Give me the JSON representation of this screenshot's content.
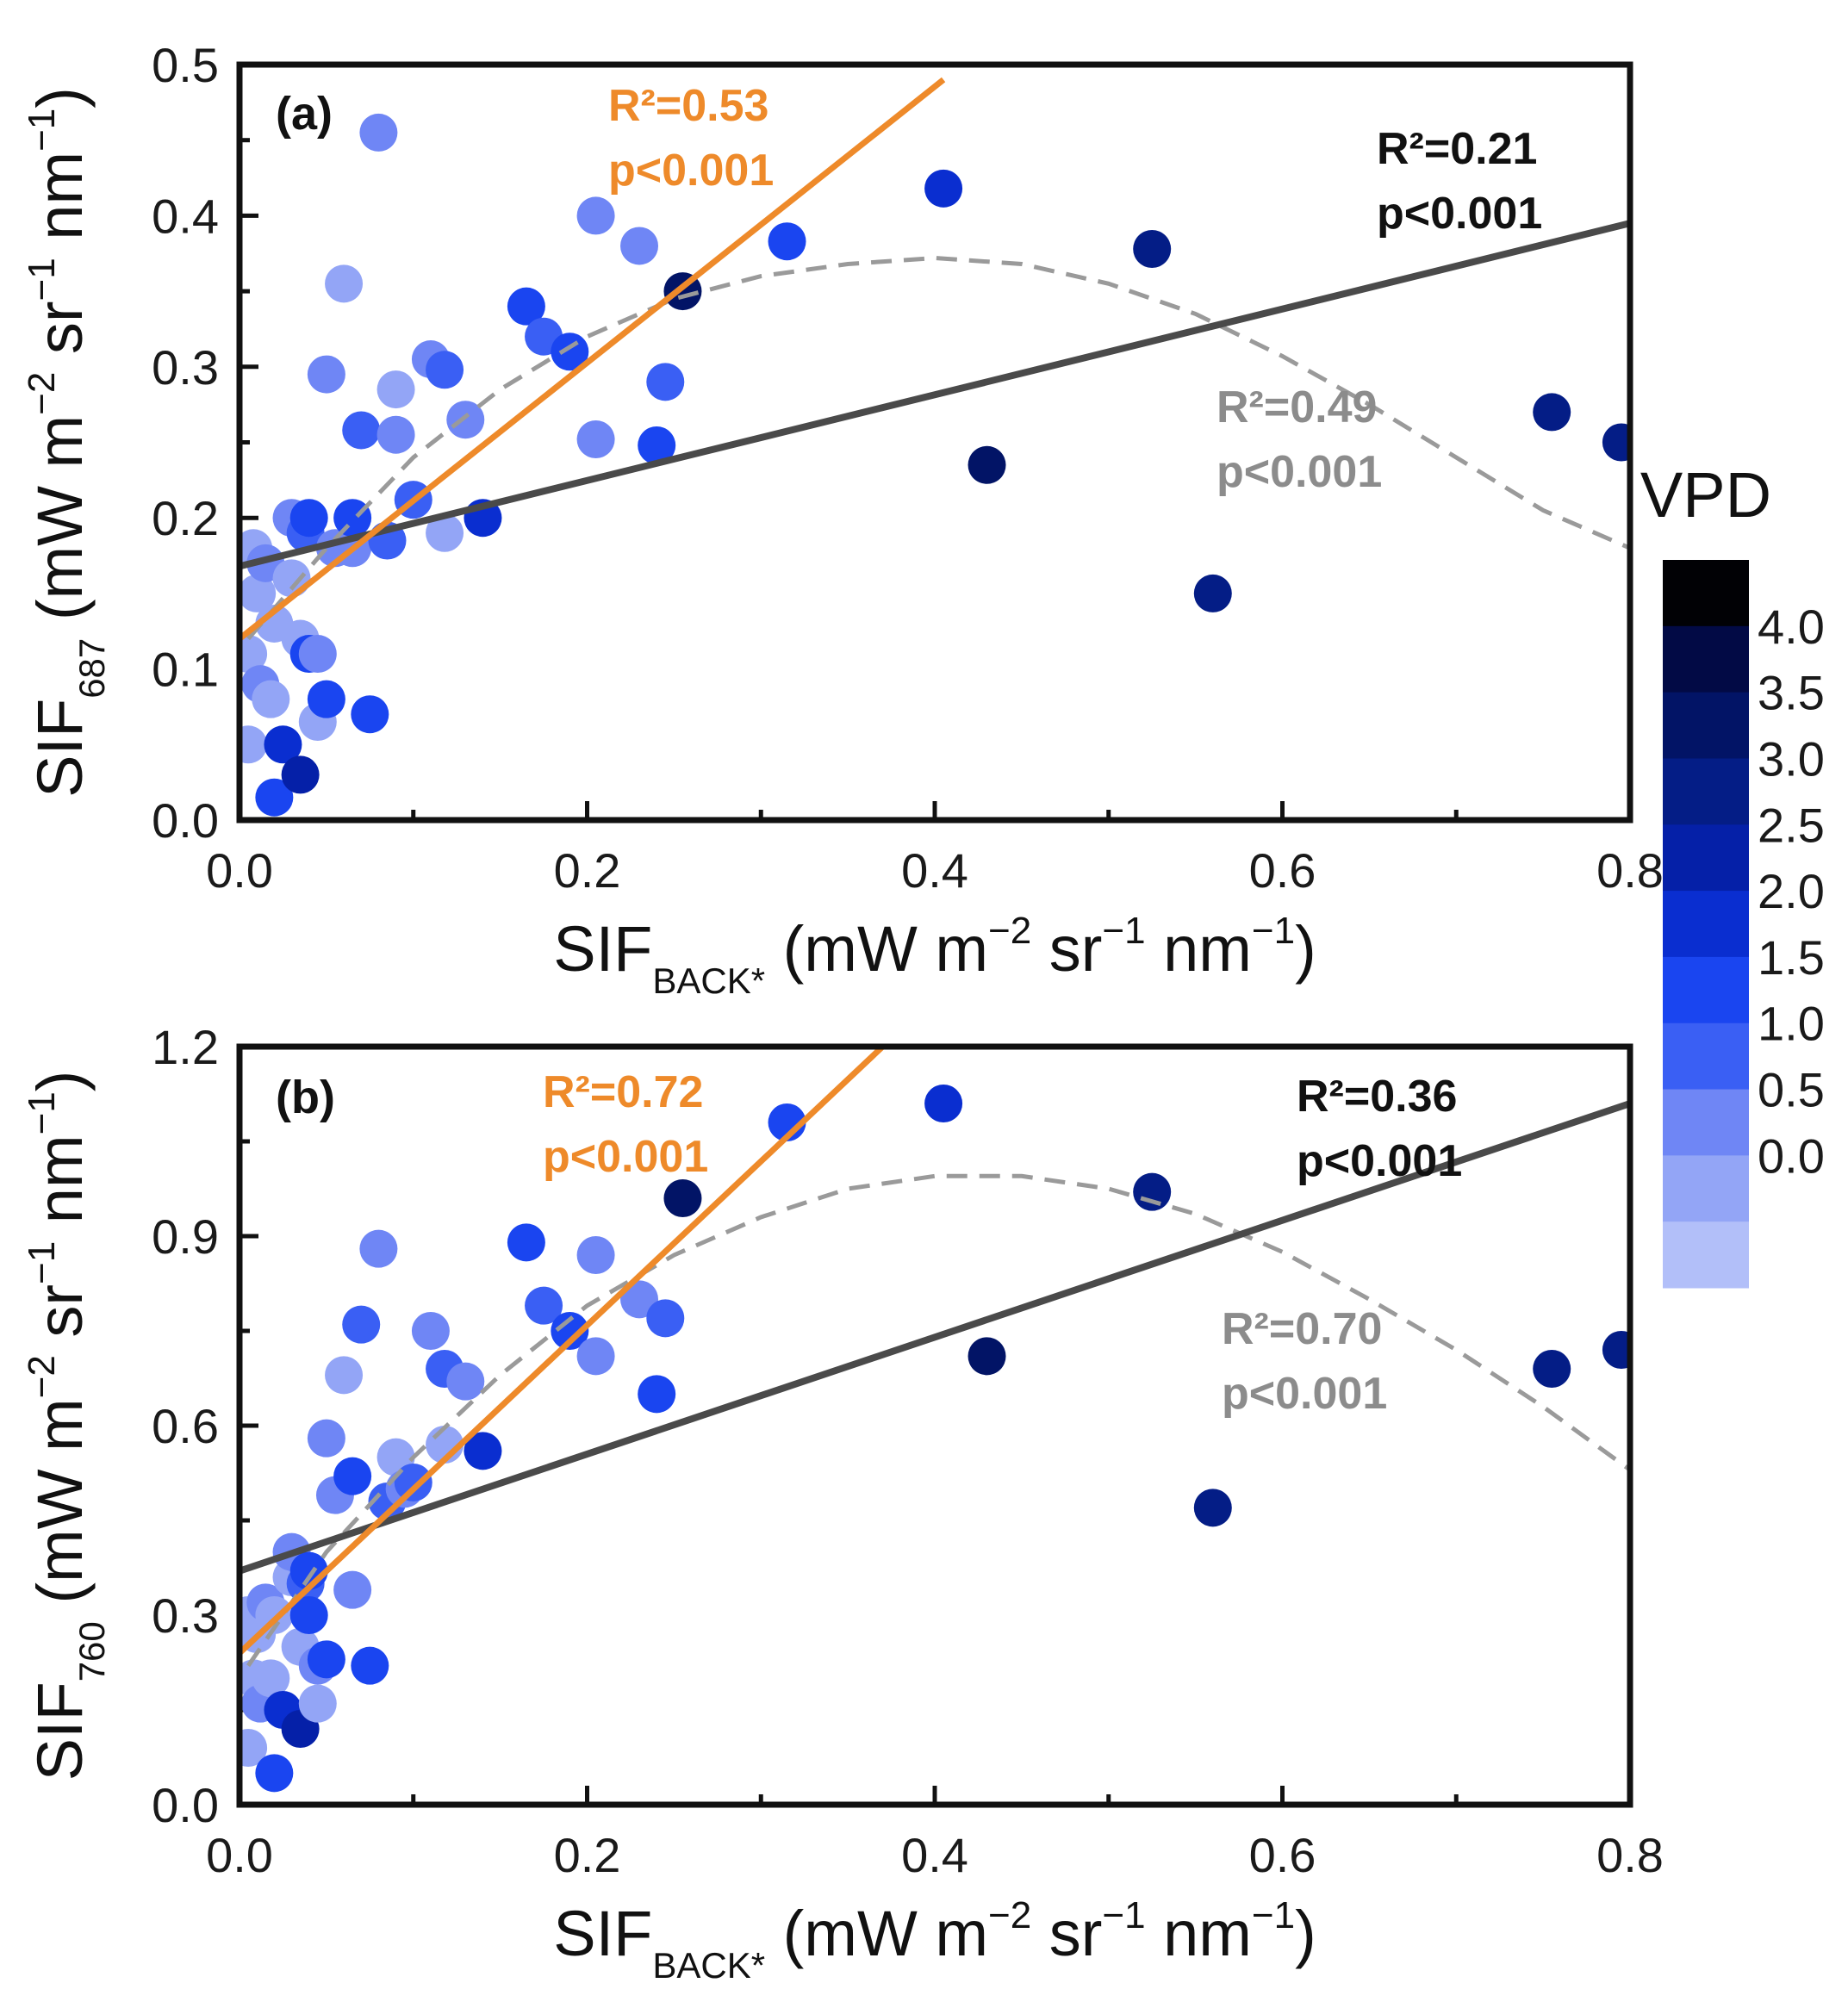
{
  "colors": {
    "orange": "#ee8a2a",
    "linear": "#4a4a4a",
    "quadratic": "#9a9a9a",
    "black": "#111111",
    "gray_text": "#8c8c8c"
  },
  "colorbar": {
    "title": "VPD",
    "ticks": [
      "4.0",
      "3.5",
      "3.0",
      "2.5",
      "2.0",
      "1.5",
      "1.0",
      "0.5",
      "0.0"
    ],
    "colors": [
      "#010105",
      "#020a45",
      "#021466",
      "#041d86",
      "#0520a8",
      "#0a2ed0",
      "#1a45f0",
      "#3a5ff4",
      "#6f86f5",
      "#93a5f6",
      "#b2bff9"
    ]
  },
  "chart_data": [
    {
      "id": "a",
      "type": "scatter",
      "panel_label": "(a)",
      "xlabel": {
        "main": "SIF",
        "sub": "BACK*",
        "units": " (mW m",
        "e1": "−2",
        "u2": " sr",
        "e2": "−1",
        "u3": " nm",
        "e3": "−1",
        "u4": ")"
      },
      "ylabel": {
        "main": "SIF",
        "sub": "687",
        "units": " (mW m",
        "e1": "−2",
        "u2": " sr",
        "e2": "−1",
        "u3": " nm",
        "e3": "−1",
        "u4": ")"
      },
      "xlim": [
        0,
        0.8
      ],
      "ylim": [
        0,
        0.5
      ],
      "xticks": [
        "0.0",
        "0.2",
        "0.4",
        "0.6",
        "0.8"
      ],
      "yticks": [
        "0.0",
        "0.1",
        "0.2",
        "0.3",
        "0.4",
        "0.5"
      ],
      "fits": {
        "orange": {
          "x": [
            0.0,
            0.405
          ],
          "y": [
            0.12,
            0.49
          ]
        },
        "linear": {
          "x": [
            0.0,
            0.8
          ],
          "y": [
            0.168,
            0.395
          ]
        },
        "quadratic_points": [
          [
            0.005,
            0.12
          ],
          [
            0.05,
            0.18
          ],
          [
            0.1,
            0.24
          ],
          [
            0.15,
            0.285
          ],
          [
            0.2,
            0.32
          ],
          [
            0.25,
            0.345
          ],
          [
            0.3,
            0.36
          ],
          [
            0.35,
            0.368
          ],
          [
            0.4,
            0.372
          ],
          [
            0.45,
            0.368
          ],
          [
            0.5,
            0.355
          ],
          [
            0.55,
            0.335
          ],
          [
            0.6,
            0.307
          ],
          [
            0.65,
            0.275
          ],
          [
            0.7,
            0.24
          ],
          [
            0.75,
            0.205
          ],
          [
            0.8,
            0.18
          ]
        ]
      },
      "annotations": [
        {
          "text": "R²=0.53",
          "line2": "p<0.001",
          "color": "orange"
        },
        {
          "text": "R²=0.21",
          "line2": "p<0.001",
          "color": "black"
        },
        {
          "text": "R²=0.49",
          "line2": "p<0.001",
          "color": "gray_text"
        }
      ],
      "points": [
        [
          0.005,
          0.05,
          0.3
        ],
        [
          0.005,
          0.11,
          0.2
        ],
        [
          0.008,
          0.18,
          0.4
        ],
        [
          0.01,
          0.15,
          0.1
        ],
        [
          0.012,
          0.09,
          0.6
        ],
        [
          0.015,
          0.17,
          0.5
        ],
        [
          0.018,
          0.08,
          0.3
        ],
        [
          0.02,
          0.015,
          1.8
        ],
        [
          0.02,
          0.13,
          0.4
        ],
        [
          0.025,
          0.05,
          2.0
        ],
        [
          0.03,
          0.16,
          0.3
        ],
        [
          0.03,
          0.2,
          0.6
        ],
        [
          0.035,
          0.03,
          2.8
        ],
        [
          0.035,
          0.12,
          0.2
        ],
        [
          0.038,
          0.19,
          1.0
        ],
        [
          0.04,
          0.2,
          1.8
        ],
        [
          0.04,
          0.11,
          1.6
        ],
        [
          0.045,
          0.065,
          0.4
        ],
        [
          0.045,
          0.11,
          0.5
        ],
        [
          0.05,
          0.08,
          1.6
        ],
        [
          0.05,
          0.295,
          0.6
        ],
        [
          0.055,
          0.18,
          0.5
        ],
        [
          0.06,
          0.355,
          0.2
        ],
        [
          0.065,
          0.18,
          0.5
        ],
        [
          0.065,
          0.2,
          1.6
        ],
        [
          0.07,
          0.258,
          1.3
        ],
        [
          0.075,
          0.07,
          1.8
        ],
        [
          0.08,
          0.455,
          0.6
        ],
        [
          0.085,
          0.185,
          1.4
        ],
        [
          0.09,
          0.285,
          0.2
        ],
        [
          0.09,
          0.255,
          0.8
        ],
        [
          0.1,
          0.212,
          1.2
        ],
        [
          0.11,
          0.305,
          0.8
        ],
        [
          0.118,
          0.298,
          1.4
        ],
        [
          0.118,
          0.19,
          0.3
        ],
        [
          0.13,
          0.265,
          0.9
        ],
        [
          0.14,
          0.2,
          2.0
        ],
        [
          0.165,
          0.34,
          1.7
        ],
        [
          0.175,
          0.32,
          1.4
        ],
        [
          0.19,
          0.31,
          1.5
        ],
        [
          0.205,
          0.4,
          0.7
        ],
        [
          0.205,
          0.252,
          0.6
        ],
        [
          0.23,
          0.38,
          0.7
        ],
        [
          0.24,
          0.248,
          1.8
        ],
        [
          0.245,
          0.29,
          1.4
        ],
        [
          0.255,
          0.35,
          3.9
        ],
        [
          0.315,
          0.383,
          1.9
        ],
        [
          0.405,
          0.418,
          2.4
        ],
        [
          0.43,
          0.235,
          3.6
        ],
        [
          0.525,
          0.378,
          3.0
        ],
        [
          0.56,
          0.15,
          3.1
        ],
        [
          0.755,
          0.27,
          3.1
        ],
        [
          0.795,
          0.25,
          3.3
        ]
      ]
    },
    {
      "id": "b",
      "type": "scatter",
      "panel_label": "(b)",
      "xlabel": {
        "main": "SIF",
        "sub": "BACK*",
        "units": " (mW m",
        "e1": "−2",
        "u2": " sr",
        "e2": "−1",
        "u3": " nm",
        "e3": "−1",
        "u4": ")"
      },
      "ylabel": {
        "main": "SIF",
        "sub": "760",
        "units": " (mW m",
        "e1": "−2",
        "u2": " sr",
        "e2": "−1",
        "u3": " nm",
        "e3": "−1",
        "u4": ")"
      },
      "xlim": [
        0,
        0.8
      ],
      "ylim": [
        0,
        1.2
      ],
      "xticks": [
        "0.0",
        "0.2",
        "0.4",
        "0.6",
        "0.8"
      ],
      "yticks": [
        "0.0",
        "0.3",
        "0.6",
        "0.9",
        "1.2"
      ],
      "fits": {
        "orange": {
          "x": [
            0.0,
            0.37
          ],
          "y": [
            0.24,
            1.2
          ]
        },
        "linear": {
          "x": [
            0.0,
            0.8
          ],
          "y": [
            0.37,
            1.11
          ]
        },
        "quadratic_points": [
          [
            0.005,
            0.22
          ],
          [
            0.05,
            0.4
          ],
          [
            0.1,
            0.55
          ],
          [
            0.15,
            0.68
          ],
          [
            0.2,
            0.79
          ],
          [
            0.25,
            0.87
          ],
          [
            0.3,
            0.93
          ],
          [
            0.35,
            0.975
          ],
          [
            0.4,
            0.995
          ],
          [
            0.45,
            0.995
          ],
          [
            0.5,
            0.975
          ],
          [
            0.55,
            0.935
          ],
          [
            0.6,
            0.875
          ],
          [
            0.65,
            0.8
          ],
          [
            0.7,
            0.72
          ],
          [
            0.75,
            0.63
          ],
          [
            0.8,
            0.53
          ]
        ]
      },
      "annotations": [
        {
          "text": "R²=0.72",
          "line2": "p<0.001",
          "color": "orange"
        },
        {
          "text": "R²=0.36",
          "line2": "p<0.001",
          "color": "black"
        },
        {
          "text": "R²=0.70",
          "line2": "p<0.001",
          "color": "gray_text"
        }
      ],
      "points": [
        [
          0.005,
          0.09,
          0.3
        ],
        [
          0.005,
          0.3,
          0.2
        ],
        [
          0.008,
          0.2,
          0.4
        ],
        [
          0.01,
          0.27,
          0.1
        ],
        [
          0.012,
          0.16,
          0.6
        ],
        [
          0.015,
          0.32,
          0.5
        ],
        [
          0.018,
          0.2,
          0.3
        ],
        [
          0.02,
          0.05,
          1.8
        ],
        [
          0.02,
          0.3,
          0.4
        ],
        [
          0.025,
          0.15,
          2.0
        ],
        [
          0.03,
          0.36,
          0.3
        ],
        [
          0.03,
          0.4,
          0.6
        ],
        [
          0.035,
          0.12,
          2.8
        ],
        [
          0.035,
          0.25,
          0.2
        ],
        [
          0.038,
          0.35,
          1.0
        ],
        [
          0.04,
          0.37,
          1.8
        ],
        [
          0.04,
          0.3,
          1.6
        ],
        [
          0.045,
          0.16,
          0.4
        ],
        [
          0.045,
          0.22,
          0.5
        ],
        [
          0.05,
          0.23,
          1.6
        ],
        [
          0.05,
          0.58,
          0.6
        ],
        [
          0.055,
          0.49,
          0.5
        ],
        [
          0.06,
          0.68,
          0.2
        ],
        [
          0.065,
          0.34,
          0.5
        ],
        [
          0.065,
          0.52,
          1.6
        ],
        [
          0.07,
          0.76,
          1.3
        ],
        [
          0.075,
          0.22,
          1.8
        ],
        [
          0.08,
          0.88,
          0.6
        ],
        [
          0.085,
          0.48,
          1.4
        ],
        [
          0.09,
          0.55,
          0.2
        ],
        [
          0.095,
          0.5,
          0.8
        ],
        [
          0.1,
          0.51,
          1.2
        ],
        [
          0.11,
          0.75,
          0.8
        ],
        [
          0.118,
          0.69,
          1.4
        ],
        [
          0.118,
          0.57,
          0.3
        ],
        [
          0.13,
          0.67,
          0.9
        ],
        [
          0.14,
          0.56,
          2.0
        ],
        [
          0.165,
          0.89,
          1.7
        ],
        [
          0.175,
          0.79,
          1.4
        ],
        [
          0.19,
          0.75,
          1.5
        ],
        [
          0.205,
          0.87,
          0.7
        ],
        [
          0.205,
          0.71,
          0.6
        ],
        [
          0.23,
          0.8,
          0.7
        ],
        [
          0.24,
          0.65,
          1.8
        ],
        [
          0.245,
          0.77,
          1.4
        ],
        [
          0.255,
          0.96,
          3.9
        ],
        [
          0.315,
          1.08,
          1.9
        ],
        [
          0.405,
          1.11,
          2.4
        ],
        [
          0.43,
          0.71,
          3.6
        ],
        [
          0.525,
          0.97,
          3.0
        ],
        [
          0.56,
          0.47,
          3.1
        ],
        [
          0.755,
          0.69,
          3.1
        ],
        [
          0.795,
          0.72,
          3.3
        ]
      ]
    }
  ]
}
